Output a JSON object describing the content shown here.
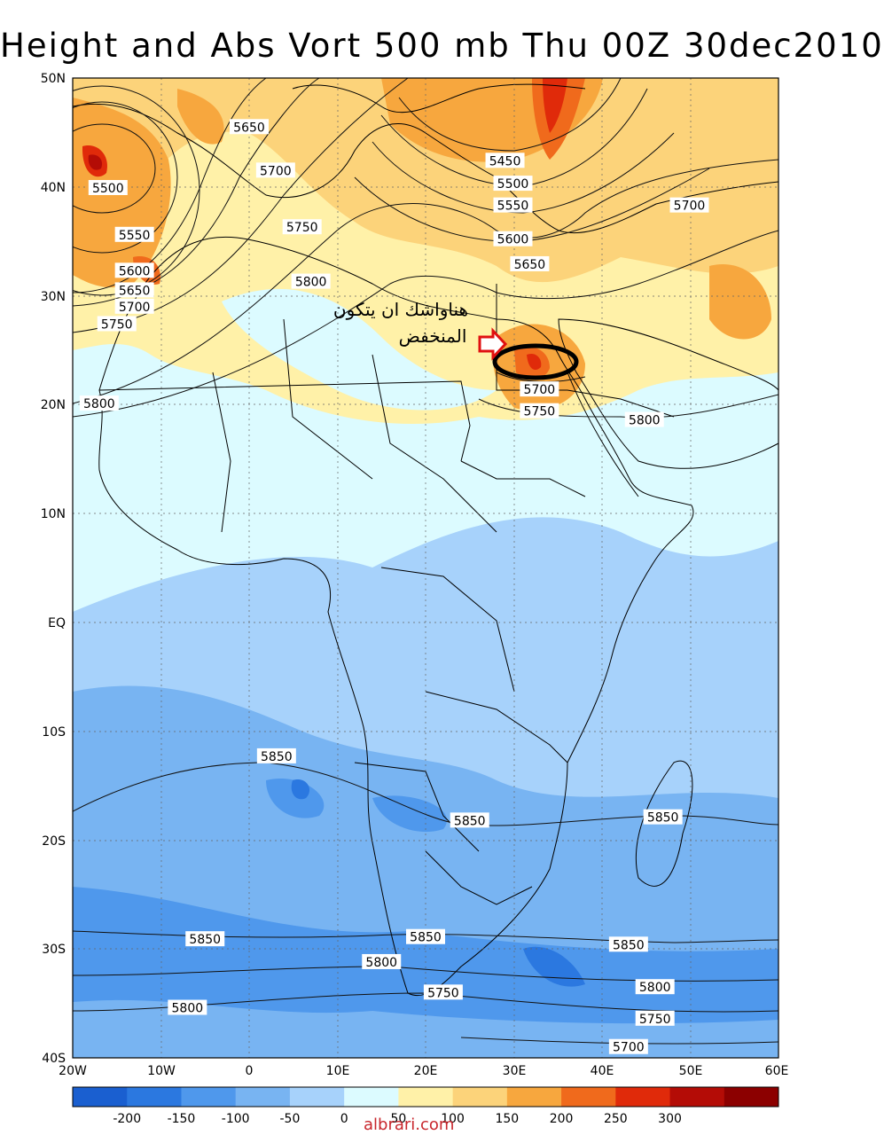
{
  "title": "Height and Abs Vort 500 mb Thu 00Z 30dec2010",
  "lat_ticks": [
    "50N",
    "40N",
    "30N",
    "20N",
    "10N",
    "EQ",
    "10S",
    "20S",
    "30S",
    "40S"
  ],
  "lon_ticks": [
    "20W",
    "10W",
    "0",
    "10E",
    "20E",
    "30E",
    "40E",
    "50E",
    "60E"
  ],
  "colorbar": {
    "labels": [
      "-200",
      "-150",
      "-100",
      "-50",
      "0",
      "50",
      "100",
      "150",
      "200",
      "250",
      "300"
    ],
    "colors": [
      "#1a5fd0",
      "#2b78e0",
      "#4f98ec",
      "#78b4f2",
      "#a7d2fb",
      "#dcfbff",
      "#fff1a8",
      "#fcd37a",
      "#f7a73e",
      "#f06a1c",
      "#e02a0a",
      "#b40c06",
      "#8c0000"
    ]
  },
  "contour_labels": [
    {
      "text": "5650",
      "lon": 0,
      "lat": 45.5
    },
    {
      "text": "5700",
      "lon": 3,
      "lat": 41.5
    },
    {
      "text": "5750",
      "lon": 6,
      "lat": 36.3
    },
    {
      "text": "5800",
      "lon": 7,
      "lat": 31.3
    },
    {
      "text": "5500",
      "lon": -16,
      "lat": 39.9
    },
    {
      "text": "5550",
      "lon": -13,
      "lat": 35.6
    },
    {
      "text": "5600",
      "lon": -13,
      "lat": 32.3
    },
    {
      "text": "5650",
      "lon": -13,
      "lat": 30.5
    },
    {
      "text": "5700",
      "lon": -13,
      "lat": 29.0
    },
    {
      "text": "5750",
      "lon": -15,
      "lat": 27.4
    },
    {
      "text": "5450",
      "lon": 29,
      "lat": 42.4
    },
    {
      "text": "5500",
      "lon": 29.9,
      "lat": 40.3
    },
    {
      "text": "5550",
      "lon": 29.9,
      "lat": 38.3
    },
    {
      "text": "5600",
      "lon": 29.9,
      "lat": 35.2
    },
    {
      "text": "5650",
      "lon": 31.8,
      "lat": 32.9
    },
    {
      "text": "5700",
      "lon": 49.9,
      "lat": 38.3
    },
    {
      "text": "5700",
      "lon": 32.9,
      "lat": 21.4
    },
    {
      "text": "5750",
      "lon": 32.9,
      "lat": 19.4
    },
    {
      "text": "5800",
      "lon": 44.8,
      "lat": 18.6
    },
    {
      "text": "5800",
      "lon": -17,
      "lat": 20.1
    },
    {
      "text": "5850",
      "lon": 3.1,
      "lat": -12.3
    },
    {
      "text": "5850",
      "lon": 25,
      "lat": -18.2
    },
    {
      "text": "5850",
      "lon": 46.9,
      "lat": -17.9
    },
    {
      "text": "5850",
      "lon": -5,
      "lat": -29.1
    },
    {
      "text": "5850",
      "lon": 20,
      "lat": -28.9
    },
    {
      "text": "5850",
      "lon": 43,
      "lat": -29.6
    },
    {
      "text": "5800",
      "lon": 15,
      "lat": -31.2
    },
    {
      "text": "5800",
      "lon": -7,
      "lat": -35.4
    },
    {
      "text": "5750",
      "lon": 22,
      "lat": -34.0
    },
    {
      "text": "5800",
      "lon": 46,
      "lat": -33.5
    },
    {
      "text": "5750",
      "lon": 46,
      "lat": -36.4
    },
    {
      "text": "5700",
      "lon": 43,
      "lat": -39.0
    }
  ],
  "annotation": {
    "line1": "هناواشك ان يتكون",
    "line2": "المنخفض"
  },
  "watermark": "albrari.com",
  "colors": {
    "highlight_ellipse": "#000000",
    "arrow": "#e01010"
  }
}
